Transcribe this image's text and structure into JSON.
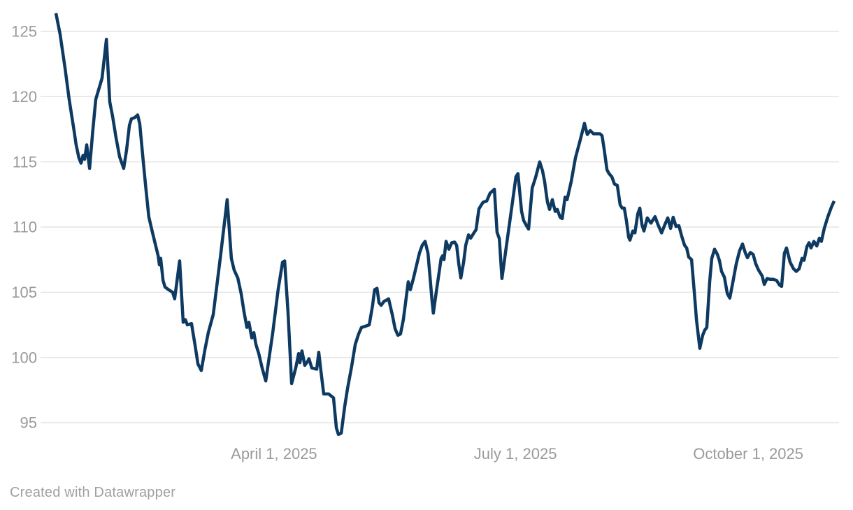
{
  "footer": {
    "attribution": "Created with Datawrapper"
  },
  "chart_data": {
    "type": "line",
    "title": "",
    "xlabel": "",
    "ylabel": "",
    "grid": true,
    "legend": false,
    "line_color": "#0e3a62",
    "line_width": 4.5,
    "grid_color": "#e4e4e4",
    "axis_label_color": "#9a9a9a",
    "background": "#ffffff",
    "x_axis": {
      "unit": "days since 2025-01-06",
      "domain": [
        0,
        300.8
      ],
      "ticks": [
        {
          "x": 84.3,
          "label": "April 1, 2025"
        },
        {
          "x": 177.6,
          "label": "July 1, 2025"
        },
        {
          "x": 267.6,
          "label": "October 1, 2025"
        }
      ]
    },
    "y_axis": {
      "domain": [
        93.3,
        127.4
      ],
      "ticks": [
        95,
        100,
        105,
        110,
        115,
        120,
        125
      ]
    },
    "series": [
      {
        "name": "value",
        "points": [
          [
            0,
            126.4
          ],
          [
            1.6,
            124.8
          ],
          [
            3.5,
            122.2
          ],
          [
            5.1,
            119.8
          ],
          [
            5.9,
            118.8
          ],
          [
            7,
            117.4
          ],
          [
            7.8,
            116.3
          ],
          [
            8.9,
            115.3
          ],
          [
            9.7,
            114.9
          ],
          [
            10.5,
            115.5
          ],
          [
            11.1,
            115.2
          ],
          [
            11.9,
            116.3
          ],
          [
            13,
            114.5
          ],
          [
            14.3,
            117.5
          ],
          [
            15.4,
            119.8
          ],
          [
            17.8,
            121.4
          ],
          [
            19.5,
            124.4
          ],
          [
            20.8,
            119.6
          ],
          [
            21.9,
            118.5
          ],
          [
            23.2,
            116.9
          ],
          [
            24.6,
            115.4
          ],
          [
            26.2,
            114.5
          ],
          [
            27.3,
            115.9
          ],
          [
            28.4,
            117.8
          ],
          [
            29.2,
            118.3
          ],
          [
            30.5,
            118.4
          ],
          [
            31.6,
            118.6
          ],
          [
            32.4,
            117.9
          ],
          [
            33.5,
            115.6
          ],
          [
            34.6,
            113.3
          ],
          [
            35.9,
            110.8
          ],
          [
            37.3,
            109.6
          ],
          [
            38.4,
            108.7
          ],
          [
            39.5,
            107.8
          ],
          [
            40,
            107.1
          ],
          [
            40.5,
            107.6
          ],
          [
            41.4,
            105.9
          ],
          [
            42.2,
            105.4
          ],
          [
            43.5,
            105.2
          ],
          [
            45.1,
            105
          ],
          [
            45.9,
            104.5
          ],
          [
            47.8,
            107.4
          ],
          [
            49.2,
            102.7
          ],
          [
            50,
            102.9
          ],
          [
            50.8,
            102.5
          ],
          [
            52.4,
            102.6
          ],
          [
            53.8,
            100.9
          ],
          [
            54.9,
            99.5
          ],
          [
            56.2,
            99
          ],
          [
            57.6,
            100.6
          ],
          [
            58.9,
            101.9
          ],
          [
            60.8,
            103.3
          ],
          [
            63.5,
            107.6
          ],
          [
            66.2,
            112.1
          ],
          [
            67.8,
            107.6
          ],
          [
            68.9,
            106.7
          ],
          [
            70.3,
            106.1
          ],
          [
            71.6,
            104.9
          ],
          [
            72.7,
            103.5
          ],
          [
            73.8,
            102.3
          ],
          [
            74.6,
            102.7
          ],
          [
            75.7,
            101.5
          ],
          [
            76.5,
            101.9
          ],
          [
            77.3,
            101
          ],
          [
            78.4,
            100.3
          ],
          [
            79.7,
            99.2
          ],
          [
            81.1,
            98.2
          ],
          [
            83.8,
            101.9
          ],
          [
            85.9,
            105.2
          ],
          [
            87.6,
            107.3
          ],
          [
            88.4,
            107.4
          ],
          [
            89.7,
            103.5
          ],
          [
            91.1,
            98
          ],
          [
            92.7,
            99.2
          ],
          [
            93.8,
            100.3
          ],
          [
            94.3,
            99.6
          ],
          [
            95.1,
            100.5
          ],
          [
            96.2,
            99.4
          ],
          [
            97.3,
            99.7
          ],
          [
            97.8,
            99.9
          ],
          [
            98.9,
            99.2
          ],
          [
            100.8,
            99.1
          ],
          [
            101.6,
            100.4
          ],
          [
            102.4,
            99
          ],
          [
            103.5,
            97.2
          ],
          [
            105.4,
            97.2
          ],
          [
            107.3,
            96.9
          ],
          [
            108.4,
            94.6
          ],
          [
            109.2,
            94.1
          ],
          [
            110.3,
            94.2
          ],
          [
            111.6,
            96.2
          ],
          [
            112.7,
            97.6
          ],
          [
            114.3,
            99.3
          ],
          [
            115.7,
            101
          ],
          [
            117,
            101.8
          ],
          [
            118.1,
            102.3
          ],
          [
            119.7,
            102.4
          ],
          [
            121.1,
            102.5
          ],
          [
            122.4,
            104
          ],
          [
            123.2,
            105.2
          ],
          [
            124.1,
            105.3
          ],
          [
            124.9,
            104.2
          ],
          [
            125.7,
            104
          ],
          [
            126.8,
            104.3
          ],
          [
            127.8,
            104.4
          ],
          [
            128.6,
            104.5
          ],
          [
            130,
            103.3
          ],
          [
            131.1,
            102.2
          ],
          [
            132.2,
            101.7
          ],
          [
            133.2,
            101.8
          ],
          [
            134.3,
            102.9
          ],
          [
            135.4,
            104.6
          ],
          [
            136.2,
            105.8
          ],
          [
            137,
            105.2
          ],
          [
            138.1,
            106
          ],
          [
            139.2,
            106.9
          ],
          [
            140.5,
            108
          ],
          [
            141.6,
            108.6
          ],
          [
            142.7,
            108.9
          ],
          [
            143.8,
            108
          ],
          [
            144.6,
            106.2
          ],
          [
            145.4,
            104.3
          ],
          [
            145.9,
            103.4
          ],
          [
            147,
            105
          ],
          [
            148.1,
            106.5
          ],
          [
            148.9,
            107.6
          ],
          [
            149.5,
            107.8
          ],
          [
            150,
            107.5
          ],
          [
            150.8,
            108.9
          ],
          [
            151.9,
            108.3
          ],
          [
            153,
            108.8
          ],
          [
            154.1,
            108.85
          ],
          [
            154.9,
            108.6
          ],
          [
            155.7,
            107.2
          ],
          [
            156.5,
            106.1
          ],
          [
            157.6,
            107.3
          ],
          [
            158.4,
            108.6
          ],
          [
            159.5,
            109.4
          ],
          [
            160.3,
            109.15
          ],
          [
            161.4,
            109.5
          ],
          [
            162.4,
            109.8
          ],
          [
            163.5,
            111.4
          ],
          [
            164.3,
            111.65
          ],
          [
            165.1,
            111.9
          ],
          [
            166.5,
            112
          ],
          [
            167.8,
            112.6
          ],
          [
            169.5,
            112.9
          ],
          [
            170.5,
            109.6
          ],
          [
            171.4,
            109.1
          ],
          [
            172.4,
            106.05
          ],
          [
            174.3,
            108.8
          ],
          [
            176.2,
            111.5
          ],
          [
            177.8,
            113.85
          ],
          [
            178.6,
            114.1
          ],
          [
            180,
            111.2
          ],
          [
            180.8,
            110.5
          ],
          [
            181.9,
            110.1
          ],
          [
            182.7,
            109.85
          ],
          [
            184.1,
            113
          ],
          [
            185.4,
            113.8
          ],
          [
            187,
            115
          ],
          [
            188.1,
            114.3
          ],
          [
            188.9,
            113.5
          ],
          [
            190,
            111.9
          ],
          [
            190.8,
            111.35
          ],
          [
            191.9,
            112.1
          ],
          [
            193,
            111.2
          ],
          [
            193.8,
            111.35
          ],
          [
            194.9,
            110.75
          ],
          [
            195.7,
            110.65
          ],
          [
            196.8,
            112.3
          ],
          [
            197.6,
            112.1
          ],
          [
            199.2,
            113.5
          ],
          [
            200.8,
            115.3
          ],
          [
            202.7,
            116.7
          ],
          [
            204.3,
            117.95
          ],
          [
            205.4,
            117.1
          ],
          [
            206.5,
            117.4
          ],
          [
            207.8,
            117.15
          ],
          [
            210.3,
            117.15
          ],
          [
            211.1,
            117
          ],
          [
            211.9,
            116
          ],
          [
            213,
            114.4
          ],
          [
            213.8,
            114.1
          ],
          [
            214.9,
            113.85
          ],
          [
            215.9,
            113.3
          ],
          [
            217,
            113.2
          ],
          [
            218.1,
            111.7
          ],
          [
            218.9,
            111.45
          ],
          [
            219.7,
            111.45
          ],
          [
            220.5,
            110.5
          ],
          [
            221.4,
            109.2
          ],
          [
            221.9,
            109
          ],
          [
            223,
            109.7
          ],
          [
            223.8,
            109.55
          ],
          [
            224.9,
            111
          ],
          [
            225.7,
            111.45
          ],
          [
            226.5,
            110.2
          ],
          [
            227.3,
            109.7
          ],
          [
            228.6,
            110.7
          ],
          [
            230,
            110.3
          ],
          [
            231.6,
            110.8
          ],
          [
            232.7,
            110.2
          ],
          [
            234.1,
            109.55
          ],
          [
            235.4,
            110.2
          ],
          [
            236.5,
            110.7
          ],
          [
            237.6,
            109.9
          ],
          [
            238.6,
            110.75
          ],
          [
            239.7,
            110.05
          ],
          [
            240.8,
            110.1
          ],
          [
            241.9,
            109.3
          ],
          [
            243,
            108.6
          ],
          [
            243.8,
            108.4
          ],
          [
            244.6,
            107.7
          ],
          [
            245.7,
            107.5
          ],
          [
            246.8,
            104.9
          ],
          [
            247.6,
            102.9
          ],
          [
            248.9,
            100.7
          ],
          [
            250,
            101.7
          ],
          [
            250.8,
            102.1
          ],
          [
            251.6,
            102.3
          ],
          [
            252.7,
            105.8
          ],
          [
            253.5,
            107.6
          ],
          [
            254.6,
            108.3
          ],
          [
            255.7,
            107.9
          ],
          [
            256.5,
            107.4
          ],
          [
            257.3,
            106.6
          ],
          [
            258.4,
            106.15
          ],
          [
            259.5,
            104.9
          ],
          [
            260.5,
            104.55
          ],
          [
            261.6,
            105.7
          ],
          [
            263,
            107.2
          ],
          [
            264.3,
            108.2
          ],
          [
            265.4,
            108.7
          ],
          [
            266.5,
            108
          ],
          [
            267.3,
            107.65
          ],
          [
            268.4,
            108.05
          ],
          [
            269.5,
            107.9
          ],
          [
            270.5,
            107.2
          ],
          [
            271.6,
            106.7
          ],
          [
            273,
            106.25
          ],
          [
            273.8,
            105.6
          ],
          [
            274.9,
            106.05
          ],
          [
            276,
            106
          ],
          [
            277.3,
            106
          ],
          [
            278.6,
            105.9
          ],
          [
            279.7,
            105.55
          ],
          [
            280.5,
            105.45
          ],
          [
            281.6,
            108
          ],
          [
            282.4,
            108.4
          ],
          [
            283.8,
            107.3
          ],
          [
            285.1,
            106.8
          ],
          [
            286.2,
            106.6
          ],
          [
            287.3,
            106.8
          ],
          [
            288.4,
            107.6
          ],
          [
            289.2,
            107.45
          ],
          [
            290.3,
            108.5
          ],
          [
            291.1,
            108.8
          ],
          [
            291.9,
            108.4
          ],
          [
            293,
            108.9
          ],
          [
            294.1,
            108.55
          ],
          [
            295.1,
            109.15
          ],
          [
            295.9,
            108.9
          ],
          [
            297,
            109.9
          ],
          [
            298.4,
            110.8
          ],
          [
            299.7,
            111.5
          ],
          [
            300.8,
            112
          ]
        ]
      }
    ]
  }
}
